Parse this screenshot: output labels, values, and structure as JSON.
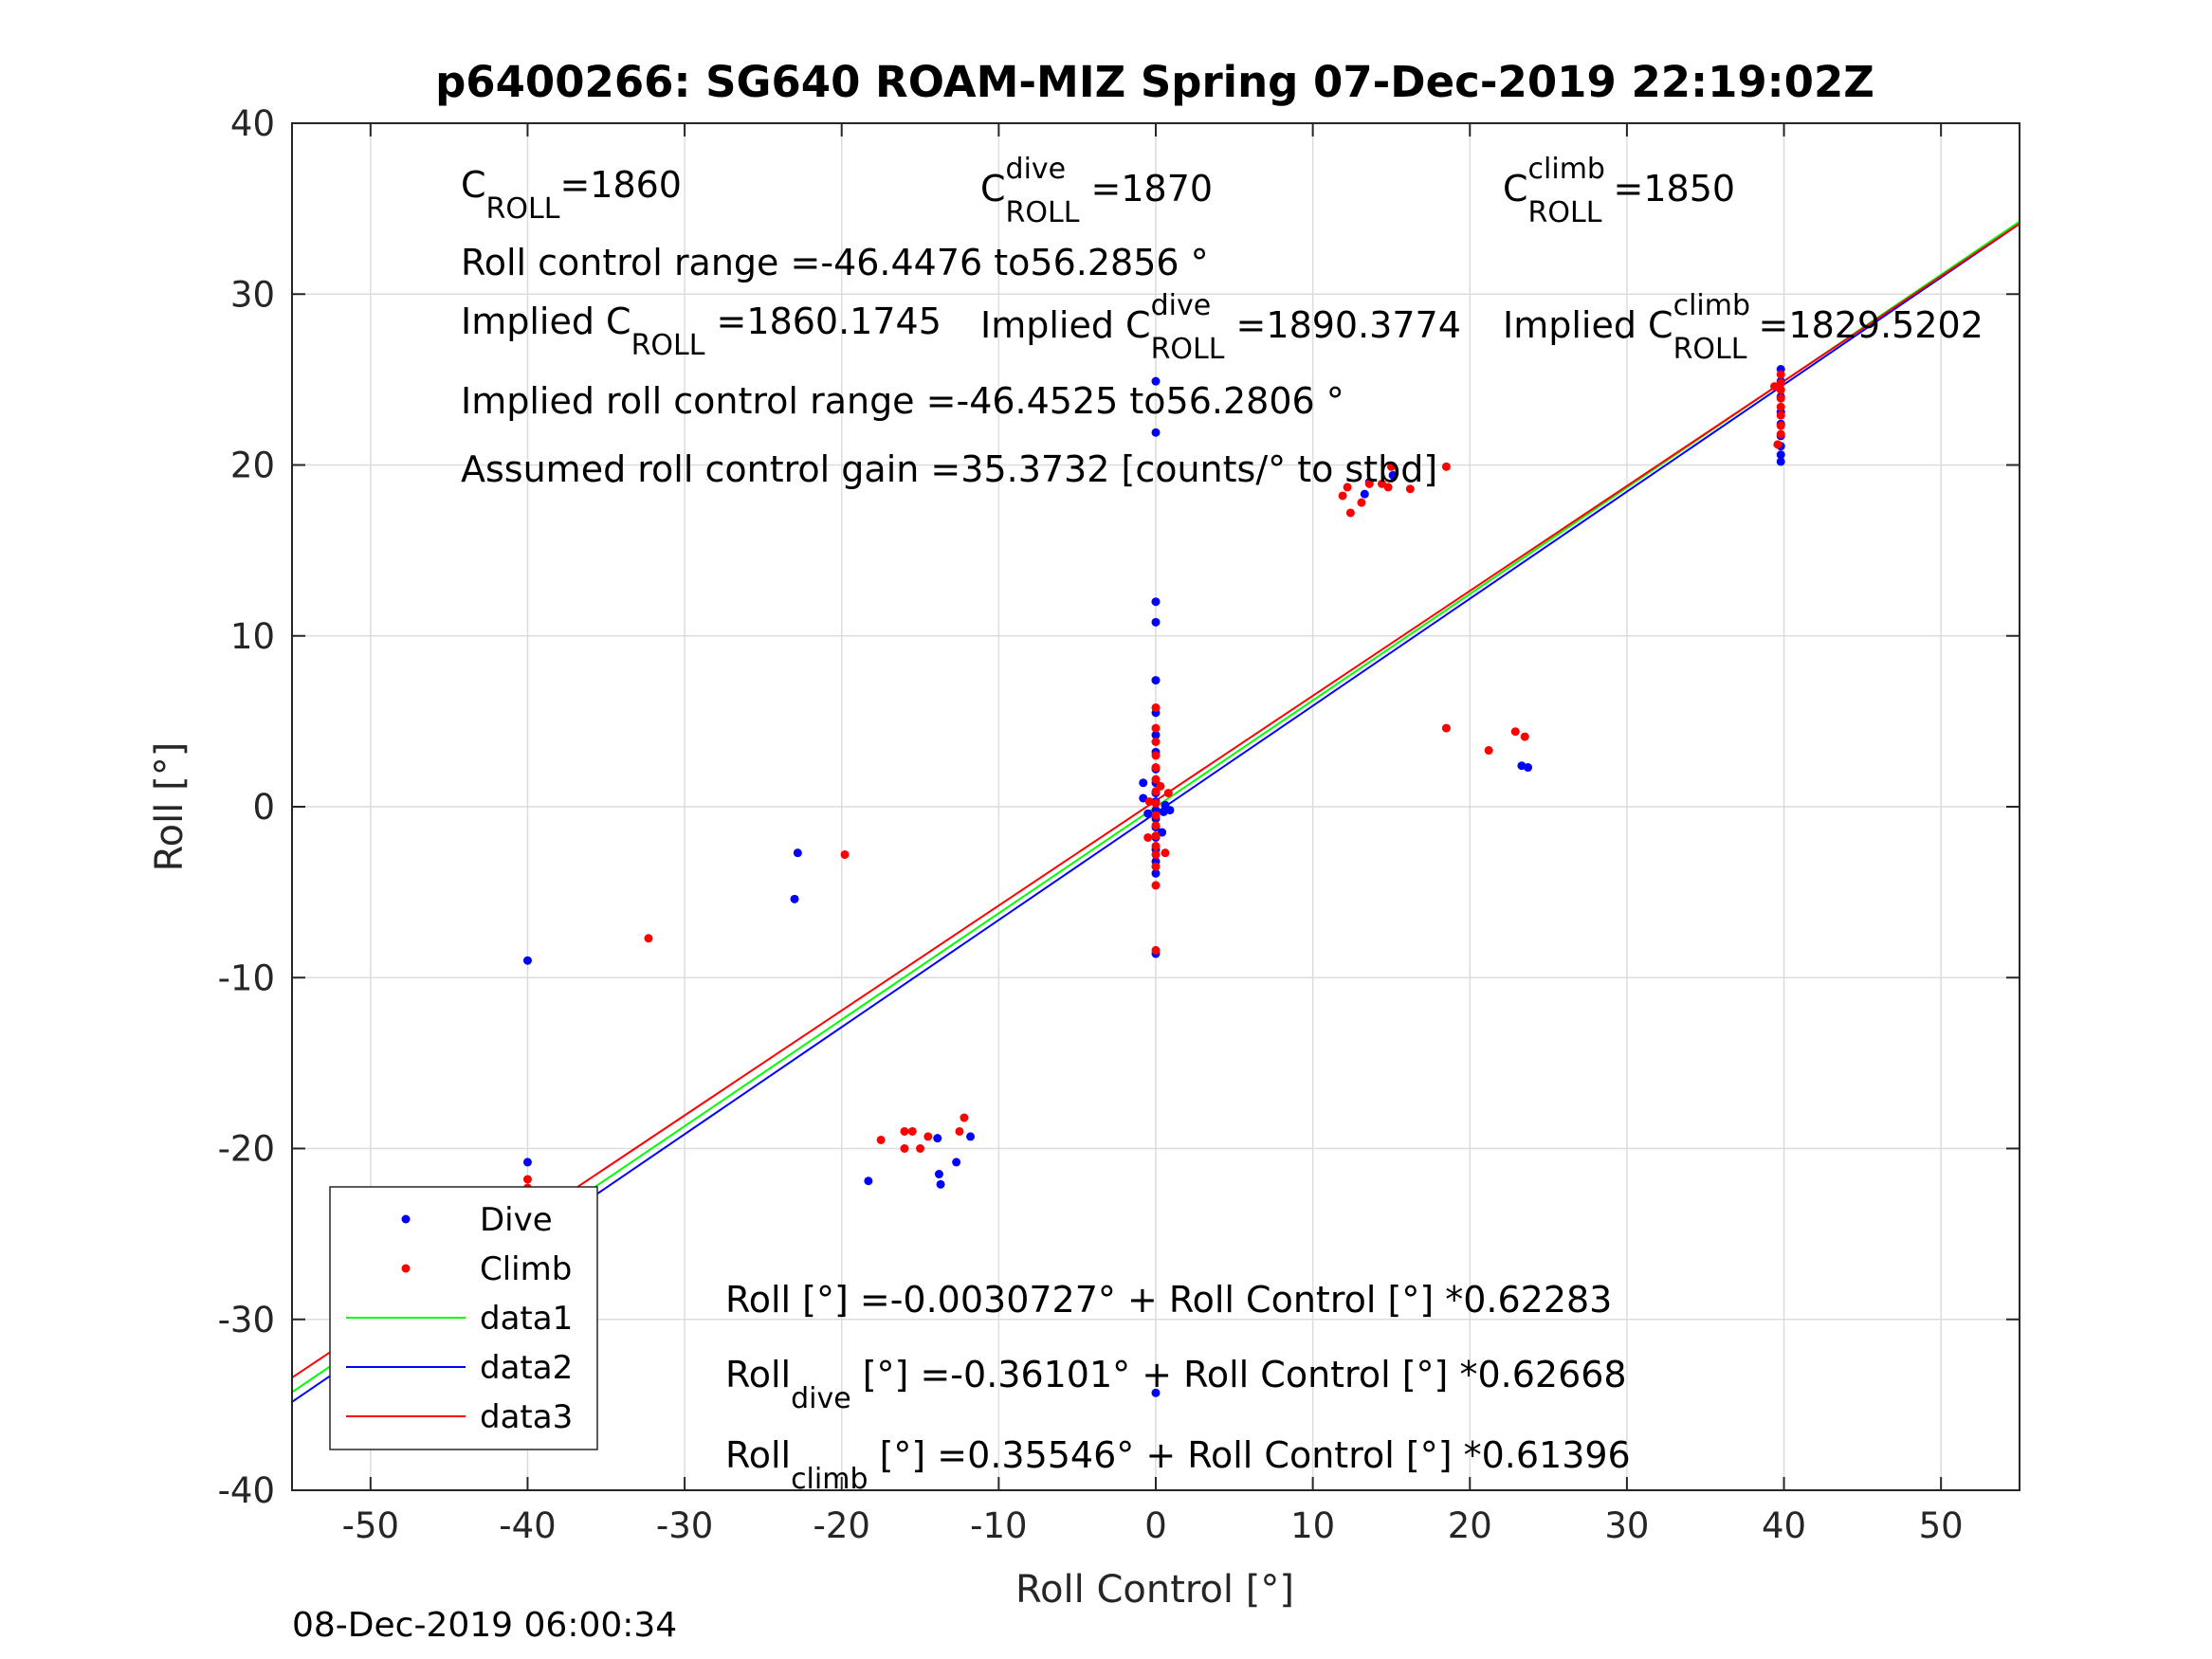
{
  "chart_data": {
    "type": "scatter",
    "title": "p6400266: SG640 ROAM-MIZ Spring 07-Dec-2019 22:19:02Z",
    "xlabel": "Roll Control [°]",
    "ylabel": "Roll [°]",
    "xlim": [
      -55,
      55
    ],
    "ylim": [
      -40,
      40
    ],
    "xticks": [
      "-50",
      "-40",
      "-30",
      "-20",
      "-10",
      "0",
      "10",
      "20",
      "30",
      "40",
      "50"
    ],
    "yticks": [
      "-40",
      "-30",
      "-20",
      "-10",
      "0",
      "10",
      "20",
      "30",
      "40"
    ],
    "grid": true,
    "legend": {
      "position": "lower-left",
      "entries": [
        "Dive",
        "Climb",
        "data1",
        "data2",
        "data3"
      ]
    },
    "series": [
      {
        "name": "Dive",
        "kind": "points",
        "color": "#0000ff",
        "points": [
          [
            -40,
            -20.8
          ],
          [
            -40,
            -22.5
          ],
          [
            -40,
            -23.3
          ],
          [
            -40,
            -24.0
          ],
          [
            -40,
            -24.6
          ],
          [
            -40,
            -25.1
          ],
          [
            -40,
            -25.5
          ],
          [
            -40,
            -25.9
          ],
          [
            -40,
            -26.3
          ],
          [
            -40,
            -26.7
          ],
          [
            -40,
            -27.1
          ],
          [
            -40,
            -27.8
          ],
          [
            -40,
            -28.3
          ],
          [
            -40,
            -29.0
          ],
          [
            -40,
            -9.0
          ],
          [
            -23,
            -5.4
          ],
          [
            -22.8,
            -2.7
          ],
          [
            -18.3,
            -21.9
          ],
          [
            -13.8,
            -21.5
          ],
          [
            -13.7,
            -22.1
          ],
          [
            -12.7,
            -20.8
          ],
          [
            -11.8,
            -19.3
          ],
          [
            -13.9,
            -19.4
          ],
          [
            0,
            24.9
          ],
          [
            0,
            21.9
          ],
          [
            0,
            12.0
          ],
          [
            0,
            10.8
          ],
          [
            0,
            7.4
          ],
          [
            0,
            5.5
          ],
          [
            0,
            4.2
          ],
          [
            0,
            3.2
          ],
          [
            0,
            2.2
          ],
          [
            0,
            1.4
          ],
          [
            0,
            0.8
          ],
          [
            0,
            0.3
          ],
          [
            0,
            -0.2
          ],
          [
            0,
            -0.7
          ],
          [
            0,
            -1.2
          ],
          [
            0,
            -1.8
          ],
          [
            0,
            -2.5
          ],
          [
            0,
            -3.2
          ],
          [
            0,
            -3.9
          ],
          [
            0,
            -8.6
          ],
          [
            0,
            -34.3
          ],
          [
            -0.8,
            1.4
          ],
          [
            -0.8,
            0.5
          ],
          [
            0.5,
            -0.3
          ],
          [
            0.6,
            0.1
          ],
          [
            0.9,
            -0.2
          ],
          [
            0.4,
            -1.5
          ],
          [
            -0.5,
            -0.4
          ],
          [
            13.6,
            19.0
          ],
          [
            13.3,
            18.3
          ],
          [
            15.1,
            19.4
          ],
          [
            23.3,
            2.4
          ],
          [
            23.7,
            2.3
          ],
          [
            39.8,
            25.6
          ],
          [
            39.8,
            24.9
          ],
          [
            39.8,
            24.0
          ],
          [
            39.8,
            23.1
          ],
          [
            39.8,
            22.4
          ],
          [
            39.8,
            21.7
          ],
          [
            39.8,
            21.1
          ],
          [
            39.8,
            20.6
          ],
          [
            39.8,
            20.2
          ]
        ]
      },
      {
        "name": "Climb",
        "kind": "points",
        "color": "#ff0000",
        "points": [
          [
            -40,
            -21.8
          ],
          [
            -40,
            -22.3
          ],
          [
            -40,
            -22.8
          ],
          [
            -40,
            -23.3
          ],
          [
            -40,
            -23.8
          ],
          [
            -40,
            -24.3
          ],
          [
            -40,
            -24.8
          ],
          [
            -40,
            -25.3
          ],
          [
            -40,
            -25.8
          ],
          [
            -40,
            -26.3
          ],
          [
            -32.3,
            -7.7
          ],
          [
            -19.8,
            -2.8
          ],
          [
            -17.5,
            -19.5
          ],
          [
            -16.0,
            -19.0
          ],
          [
            -15.5,
            -19.0
          ],
          [
            -15.0,
            -20.0
          ],
          [
            -14.5,
            -19.3
          ],
          [
            -16.0,
            -20.0
          ],
          [
            -12.5,
            -19.0
          ],
          [
            -12.2,
            -18.2
          ],
          [
            0,
            5.8
          ],
          [
            0,
            4.6
          ],
          [
            0,
            3.8
          ],
          [
            0,
            3.0
          ],
          [
            0,
            2.3
          ],
          [
            0,
            1.6
          ],
          [
            0,
            0.9
          ],
          [
            0,
            0.2
          ],
          [
            0,
            -0.5
          ],
          [
            0,
            -1.1
          ],
          [
            0,
            -1.7
          ],
          [
            0,
            -2.3
          ],
          [
            0,
            -2.8
          ],
          [
            0,
            -3.5
          ],
          [
            0,
            -4.6
          ],
          [
            0,
            -8.4
          ],
          [
            -0.5,
            -1.8
          ],
          [
            0.6,
            -2.7
          ],
          [
            0.8,
            0.8
          ],
          [
            -0.4,
            0.3
          ],
          [
            0.3,
            1.2
          ],
          [
            11.9,
            18.2
          ],
          [
            12.2,
            18.7
          ],
          [
            12.4,
            17.2
          ],
          [
            13.1,
            17.8
          ],
          [
            13.6,
            18.9
          ],
          [
            14.4,
            18.9
          ],
          [
            14.8,
            18.7
          ],
          [
            15.0,
            19.9
          ],
          [
            16.2,
            18.6
          ],
          [
            18.5,
            19.9
          ],
          [
            18.5,
            4.6
          ],
          [
            21.2,
            3.3
          ],
          [
            22.9,
            4.4
          ],
          [
            23.5,
            4.1
          ],
          [
            39.4,
            24.6
          ],
          [
            39.8,
            25.3
          ],
          [
            39.8,
            24.8
          ],
          [
            39.8,
            24.4
          ],
          [
            39.8,
            23.9
          ],
          [
            39.8,
            23.4
          ],
          [
            39.8,
            22.9
          ],
          [
            39.8,
            22.3
          ],
          [
            39.8,
            21.8
          ],
          [
            39.6,
            21.2
          ]
        ]
      },
      {
        "name": "data1",
        "kind": "line",
        "color": "#00ff00",
        "x": [
          -55,
          55
        ],
        "y": [
          -34.26,
          34.25
        ]
      },
      {
        "name": "data2",
        "kind": "line",
        "color": "#0000ff",
        "x": [
          -55,
          55
        ],
        "y": [
          -34.83,
          34.11
        ]
      },
      {
        "name": "data3",
        "kind": "line",
        "color": "#ff0000",
        "x": [
          -55,
          55
        ],
        "y": [
          -33.41,
          34.12
        ]
      }
    ],
    "annotations": {
      "top": [
        {
          "parts": [
            {
              "t": "C"
            },
            {
              "t": "ROLL",
              "sub": true
            },
            {
              "t": "=1860"
            }
          ]
        },
        {
          "parts": [
            {
              "t": "C"
            },
            {
              "t": "dive",
              "sup": true
            },
            {
              "t": "ROLL",
              "sub": true
            },
            {
              "t": " =1870"
            }
          ]
        },
        {
          "parts": [
            {
              "t": "C"
            },
            {
              "t": "climb",
              "sup": true
            },
            {
              "t": "ROLL",
              "sub": true
            },
            {
              "t": " =1850"
            }
          ]
        },
        {
          "parts": [
            {
              "t": "Roll control range =-46.4476 to56.2856 °"
            }
          ]
        },
        {
          "parts": [
            {
              "t": "Implied C"
            },
            {
              "t": "ROLL",
              "sub": true
            },
            {
              "t": " =1860.1745"
            }
          ]
        },
        {
          "parts": [
            {
              "t": "Implied C"
            },
            {
              "t": "dive",
              "sup": true
            },
            {
              "t": "ROLL",
              "sub": true
            },
            {
              "t": " =1890.3774"
            }
          ]
        },
        {
          "parts": [
            {
              "t": "Implied C"
            },
            {
              "t": "climb",
              "sup": true
            },
            {
              "t": "ROLL",
              "sub": true
            },
            {
              "t": " =1829.5202"
            }
          ]
        },
        {
          "parts": [
            {
              "t": "Implied roll control range =-46.4525 to56.2806 °"
            }
          ]
        },
        {
          "parts": [
            {
              "t": "Assumed roll control gain =35.3732 [counts/° to stbd]"
            }
          ]
        }
      ],
      "fits": [
        {
          "parts": [
            {
              "t": "Roll [°] =-0.0030727° + Roll Control [°] *0.62283"
            }
          ]
        },
        {
          "parts": [
            {
              "t": "Roll"
            },
            {
              "t": "dive",
              "sub": true
            },
            {
              "t": " [°] =-0.36101° + Roll Control [°] *0.62668"
            }
          ]
        },
        {
          "parts": [
            {
              "t": "Roll"
            },
            {
              "t": "climb",
              "sub": true
            },
            {
              "t": " [°] =0.35546° + Roll Control [°] *0.61396"
            }
          ]
        }
      ]
    },
    "footer": "08-Dec-2019 06:00:34"
  }
}
